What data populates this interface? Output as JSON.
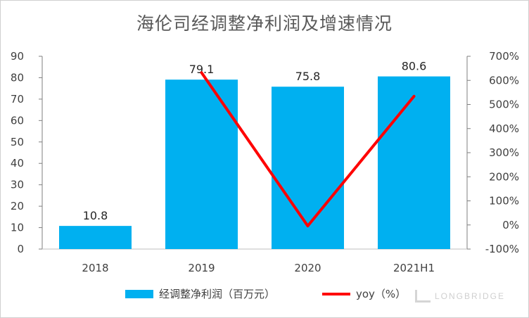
{
  "title": "海伦司经调整净利润及增速情况",
  "legend": {
    "bar_label": "经调整净利润（百万元）",
    "line_label": "yoy（%）"
  },
  "brand": "LONGBRIDGE",
  "colors": {
    "bar": "#00b0f0",
    "line": "#ff0000",
    "axis_text": "#404040"
  },
  "chart_data": {
    "type": "bar",
    "categories": [
      "2018",
      "2019",
      "2020",
      "2021H1"
    ],
    "series": [
      {
        "name": "经调整净利润（百万元）",
        "type": "bar",
        "axis": "left",
        "values": [
          10.8,
          79.1,
          75.8,
          80.6
        ]
      },
      {
        "name": "yoy（%）",
        "type": "line",
        "axis": "right",
        "values": [
          null,
          632,
          -4,
          534
        ]
      }
    ],
    "data_labels": [
      "10.8",
      "79.1",
      "75.8",
      "80.6"
    ],
    "y_left": {
      "range": [
        0,
        90
      ],
      "ticks": [
        "0",
        "10",
        "20",
        "30",
        "40",
        "50",
        "60",
        "70",
        "80",
        "90"
      ]
    },
    "y_right": {
      "range": [
        -100,
        700
      ],
      "ticks": [
        "-100%",
        "0%",
        "100%",
        "200%",
        "300%",
        "400%",
        "500%",
        "600%",
        "700%"
      ]
    },
    "grid": false,
    "legend_position": "bottom"
  }
}
